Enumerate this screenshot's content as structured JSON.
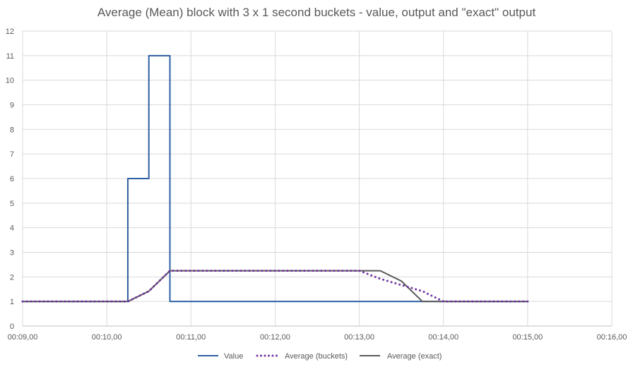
{
  "chart_data": {
    "type": "line",
    "title": "Average (Mean) block with  3 x 1 second buckets - value, output and \"exact\" output",
    "xlabel": "",
    "ylabel": "",
    "x_ticks": [
      "00:09,00",
      "00:10,00",
      "00:11,00",
      "00:12,00",
      "00:13,00",
      "00:14,00",
      "00:15,00",
      "00:16,00"
    ],
    "y_ticks": [
      "0",
      "1",
      "2",
      "3",
      "4",
      "5",
      "6",
      "7",
      "8",
      "9",
      "10",
      "11",
      "12"
    ],
    "xlim": [
      9.0,
      16.0
    ],
    "ylim": [
      0,
      12
    ],
    "grid": true,
    "legend_position": "bottom",
    "series": [
      {
        "name": "Value",
        "color": "#2e5fa3",
        "style": "solid",
        "x": [
          9.0,
          10.25,
          10.25,
          10.5,
          10.5,
          10.75,
          10.75,
          15.0
        ],
        "y": [
          1,
          1,
          6,
          6,
          11,
          11,
          1,
          1
        ]
      },
      {
        "name": "Average (buckets)",
        "color": "#7030a0",
        "style": "dotted",
        "x": [
          9.0,
          10.0,
          10.25,
          10.5,
          10.75,
          11.0,
          12.0,
          13.0,
          13.25,
          13.5,
          13.75,
          14.0,
          15.0
        ],
        "y": [
          1,
          1,
          1,
          1.42,
          2.25,
          2.25,
          2.25,
          2.25,
          1.92,
          1.67,
          1.42,
          1,
          1
        ]
      },
      {
        "name": "Average (exact)",
        "color": "#595959",
        "style": "solid",
        "x": [
          9.0,
          10.0,
          10.25,
          10.5,
          10.75,
          11.0,
          12.0,
          13.0,
          13.25,
          13.5,
          13.75,
          14.0,
          15.0
        ],
        "y": [
          1,
          1,
          1,
          1.42,
          2.25,
          2.25,
          2.25,
          2.25,
          2.25,
          1.83,
          1,
          1,
          1
        ]
      }
    ]
  }
}
